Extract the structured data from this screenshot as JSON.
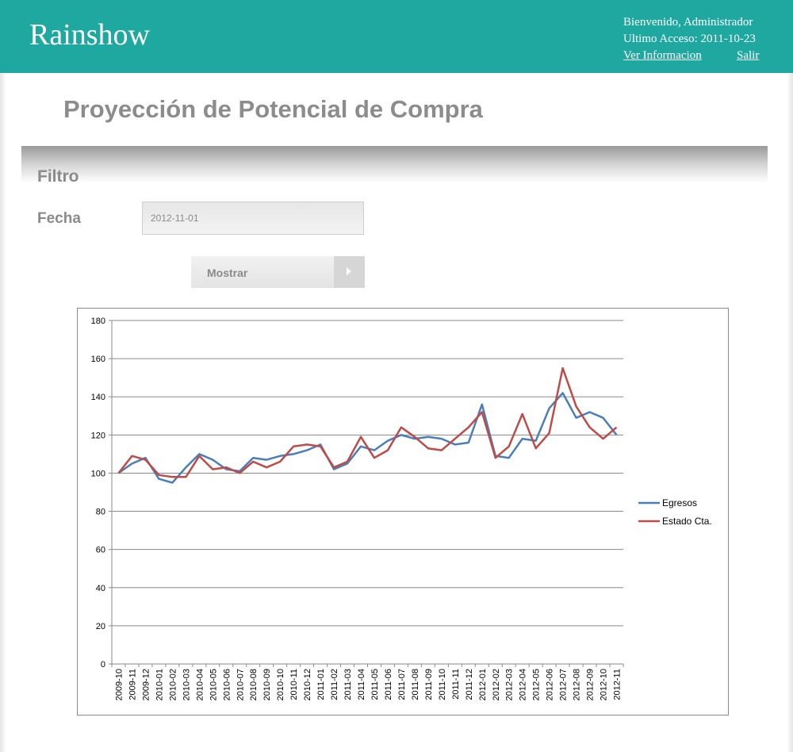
{
  "header": {
    "brand": "Rainshow",
    "welcome": "Bienvenido, Administrador",
    "last_access": "Ultimo Acceso: 2011-10-23",
    "info_link": "Ver Informacion",
    "logout_link": "Salir"
  },
  "page": {
    "title": "Proyección de Potencial de Compra"
  },
  "filter": {
    "title": "Filtro",
    "date_label": "Fecha",
    "date_value": "2012-11-01",
    "show_button": "Mostrar"
  },
  "colors": {
    "header_bg": "#1fa8a0",
    "egresos": "#4a7ebb",
    "estado": "#be4b48"
  },
  "chart_data": {
    "type": "line",
    "title": "",
    "xlabel": "",
    "ylabel": "",
    "ylim": [
      0,
      180
    ],
    "yticks": [
      0,
      20,
      40,
      60,
      80,
      100,
      120,
      140,
      160,
      180
    ],
    "grid": true,
    "legend_position": "right",
    "categories": [
      "2009-10",
      "2009-11",
      "2009-12",
      "2010-01",
      "2010-02",
      "2010-03",
      "2010-04",
      "2010-05",
      "2010-06",
      "2010-07",
      "2010-08",
      "2010-09",
      "2010-10",
      "2010-11",
      "2010-12",
      "2011-01",
      "2011-02",
      "2011-03",
      "2011-04",
      "2011-05",
      "2011-06",
      "2011-07",
      "2011-08",
      "2011-09",
      "2011-10",
      "2011-11",
      "2011-12",
      "2012-01",
      "2012-02",
      "2012-03",
      "2012-04",
      "2012-05",
      "2012-06",
      "2012-07",
      "2012-08",
      "2012-09",
      "2012-10",
      "2012-11"
    ],
    "series": [
      {
        "name": "Egresos",
        "color": "#4a7ebb",
        "values": [
          100,
          105,
          108,
          97,
          95,
          103,
          110,
          107,
          102,
          101,
          108,
          107,
          109,
          110,
          112,
          115,
          102,
          105,
          114,
          112,
          117,
          120,
          118,
          119,
          118,
          115,
          116,
          136,
          109,
          108,
          118,
          117,
          134,
          142,
          129,
          132,
          129,
          120
        ]
      },
      {
        "name": "Estado Cta.",
        "color": "#be4b48",
        "values": [
          100,
          109,
          107,
          99,
          98,
          98,
          109,
          102,
          103,
          100,
          106,
          103,
          106,
          114,
          115,
          114,
          103,
          106,
          119,
          108,
          112,
          124,
          119,
          113,
          112,
          118,
          124,
          132,
          108,
          114,
          131,
          113,
          121,
          155,
          135,
          124,
          118,
          124
        ]
      }
    ]
  }
}
